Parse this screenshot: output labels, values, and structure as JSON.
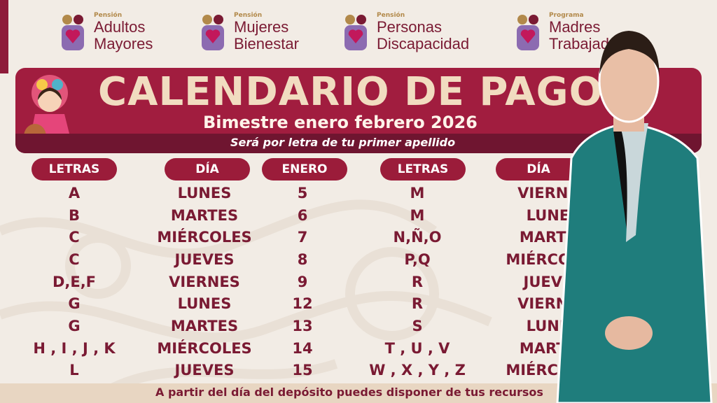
{
  "logos": [
    {
      "kicker": "Pensión",
      "line1": "Adultos",
      "line2": "Mayores",
      "icon": "elderly-couple-heart-icon"
    },
    {
      "kicker": "Pensión",
      "line1": "Mujeres",
      "line2": "Bienestar",
      "icon": "women-heart-icon"
    },
    {
      "kicker": "Pensión",
      "line1": "Personas",
      "line2": "Discapacidad",
      "icon": "accessibility-heart-icon"
    },
    {
      "kicker": "Programa",
      "line1": "Madres",
      "line2": "Trabajadoras",
      "icon": "mother-children-icon"
    }
  ],
  "banner": {
    "title": "CALENDARIO DE PAGOS",
    "subtitle": "Bimestre enero febrero 2026",
    "note": "Será por letra de tu primer apellido"
  },
  "headers": {
    "letras": "LETRAS",
    "dia": "DÍA",
    "enero": "ENERO"
  },
  "left_rows": [
    {
      "letras": "A",
      "dia": "LUNES",
      "fecha": "5"
    },
    {
      "letras": "B",
      "dia": "MARTES",
      "fecha": "6"
    },
    {
      "letras": "C",
      "dia": "MIÉRCOLES",
      "fecha": "7"
    },
    {
      "letras": "C",
      "dia": "JUEVES",
      "fecha": "8"
    },
    {
      "letras": "D,E,F",
      "dia": "VIERNES",
      "fecha": "9"
    },
    {
      "letras": "G",
      "dia": "LUNES",
      "fecha": "12"
    },
    {
      "letras": "G",
      "dia": "MARTES",
      "fecha": "13"
    },
    {
      "letras": "H , I , J , K",
      "dia": "MIÉRCOLES",
      "fecha": "14"
    },
    {
      "letras": "L",
      "dia": "JUEVES",
      "fecha": "15"
    }
  ],
  "right_rows": [
    {
      "letras": "M",
      "dia": "VIERNES"
    },
    {
      "letras": "M",
      "dia": "LUNES"
    },
    {
      "letras": "N,Ñ,O",
      "dia": "MARTES"
    },
    {
      "letras": "P,Q",
      "dia": "MIÉRCOLES"
    },
    {
      "letras": "R",
      "dia": "JUEVES"
    },
    {
      "letras": "R",
      "dia": "VIERNES"
    },
    {
      "letras": "S",
      "dia": "LUNES"
    },
    {
      "letras": "T , U , V",
      "dia": "MARTES"
    },
    {
      "letras": "W , X , Y , Z",
      "dia": "MIÉRCOLES"
    }
  ],
  "footer": "A partir del día del depósito puedes disponer de tus recursos",
  "colors": {
    "maroon": "#9b1c3a",
    "text": "#7a1a33",
    "gold": "#f1dcc0",
    "background": "#f2ece5",
    "suit": "#1f7d7c"
  }
}
